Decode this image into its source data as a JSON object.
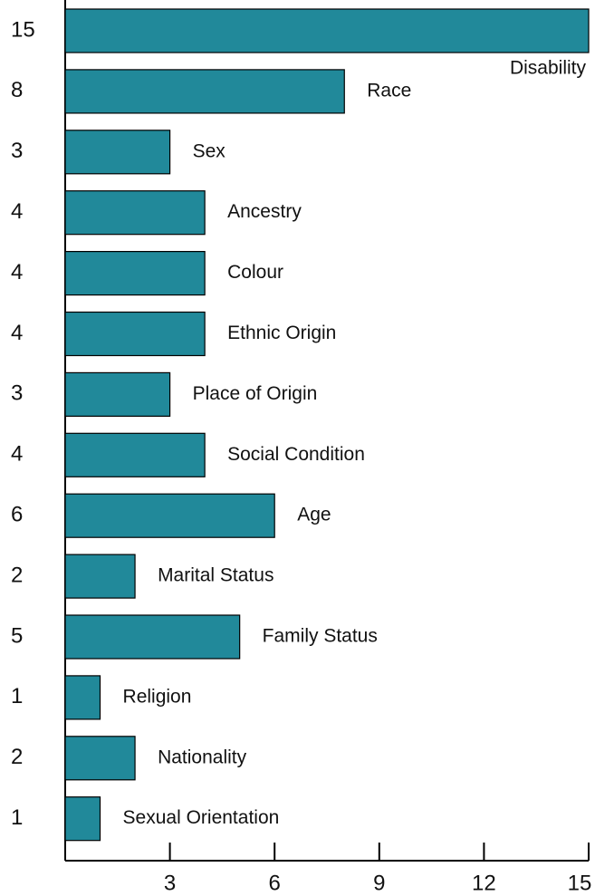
{
  "chart_data": {
    "type": "bar",
    "orientation": "horizontal",
    "categories": [
      "Disability",
      "Race",
      "Sex",
      "Ancestry",
      "Colour",
      "Ethnic Origin",
      "Place of Origin",
      "Social Condition",
      "Age",
      "Marital Status",
      "Family Status",
      "Religion",
      "Nationality",
      "Sexual Orientation"
    ],
    "values": [
      15,
      8,
      3,
      4,
      4,
      4,
      3,
      4,
      6,
      2,
      5,
      1,
      2,
      1
    ],
    "color": "#21899a",
    "xlim": [
      0,
      15
    ],
    "xticks": [
      3,
      6,
      9,
      12,
      15
    ],
    "grid": false
  }
}
